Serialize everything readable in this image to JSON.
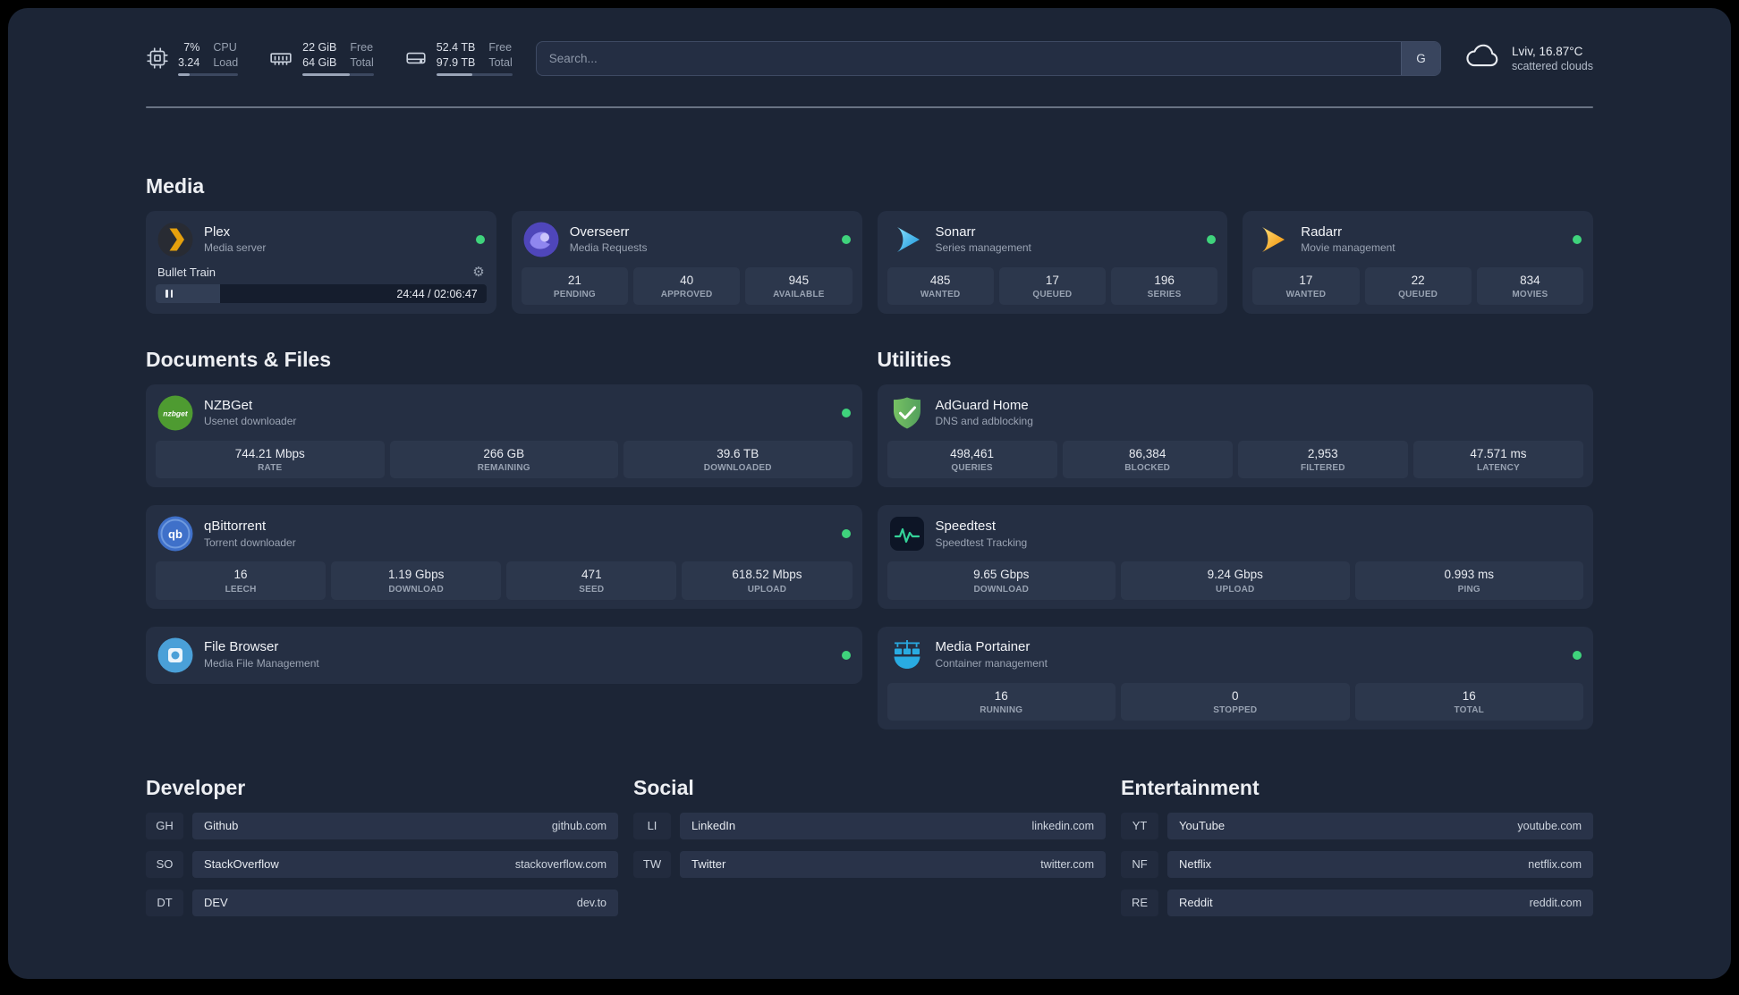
{
  "colors": {
    "page_background": "#1c2536",
    "card_background": "#252f43",
    "status_online": "#3fd37c",
    "plex_accent": "#e5a00d",
    "sonarr_accent": "#35c5f1",
    "radarr_accent": "#f5a623",
    "nzbget_accent": "#4e9b31",
    "qbittorrent_accent": "#3f70c9",
    "filebrowser_accent": "#4aa0d8",
    "adguard_accent": "#68b470",
    "speedtest_accent": "#34d399",
    "portainer_accent": "#29abe2"
  },
  "icons": {
    "gear_glyph": "⚙"
  },
  "topbar": {
    "cpu": {
      "value_top": "7%",
      "value_bottom": "3.24",
      "label_top": "CPU",
      "label_bottom": "Load",
      "progress_percent": 20
    },
    "memory": {
      "value_top": "22 GiB",
      "value_bottom": "64 GiB",
      "label_top": "Free",
      "label_bottom": "Total",
      "progress_percent": 66
    },
    "disk": {
      "value_top": "52.4 TB",
      "value_bottom": "97.9 TB",
      "label_top": "Free",
      "label_bottom": "Total",
      "progress_percent": 47
    },
    "search": {
      "placeholder": "Search...",
      "provider_button": "G"
    },
    "weather": {
      "location": "Lviv, 16.87°C",
      "condition": "scattered clouds"
    }
  },
  "media": {
    "title": "Media",
    "plex": {
      "name": "Plex",
      "description": "Media server",
      "status": "online",
      "now_playing": {
        "title": "Bullet Train",
        "time": "24:44 / 02:06:47",
        "progress_percent": 19.5
      }
    },
    "overseerr": {
      "name": "Overseerr",
      "description": "Media Requests",
      "status": "online",
      "stats": [
        {
          "value": "21",
          "label": "PENDING"
        },
        {
          "value": "40",
          "label": "APPROVED"
        },
        {
          "value": "945",
          "label": "AVAILABLE"
        }
      ]
    },
    "sonarr": {
      "name": "Sonarr",
      "description": "Series management",
      "status": "online",
      "stats": [
        {
          "value": "485",
          "label": "WANTED"
        },
        {
          "value": "17",
          "label": "QUEUED"
        },
        {
          "value": "196",
          "label": "SERIES"
        }
      ]
    },
    "radarr": {
      "name": "Radarr",
      "description": "Movie management",
      "status": "online",
      "stats": [
        {
          "value": "17",
          "label": "WANTED"
        },
        {
          "value": "22",
          "label": "QUEUED"
        },
        {
          "value": "834",
          "label": "MOVIES"
        }
      ]
    }
  },
  "documents": {
    "title": "Documents & Files",
    "nzbget": {
      "name": "NZBGet",
      "description": "Usenet downloader",
      "status": "online",
      "icon_text": "nzbget",
      "stats": [
        {
          "value": "744.21 Mbps",
          "label": "RATE"
        },
        {
          "value": "266 GB",
          "label": "REMAINING"
        },
        {
          "value": "39.6 TB",
          "label": "DOWNLOADED"
        }
      ]
    },
    "qbittorrent": {
      "name": "qBittorrent",
      "description": "Torrent downloader",
      "status": "online",
      "icon_text": "qb",
      "stats": [
        {
          "value": "16",
          "label": "LEECH"
        },
        {
          "value": "1.19 Gbps",
          "label": "DOWNLOAD"
        },
        {
          "value": "471",
          "label": "SEED"
        },
        {
          "value": "618.52 Mbps",
          "label": "UPLOAD"
        }
      ]
    },
    "filebrowser": {
      "name": "File Browser",
      "description": "Media File Management",
      "status": "online"
    }
  },
  "utilities": {
    "title": "Utilities",
    "adguard": {
      "name": "AdGuard Home",
      "description": "DNS and adblocking",
      "stats": [
        {
          "value": "498,461",
          "label": "QUERIES"
        },
        {
          "value": "86,384",
          "label": "BLOCKED"
        },
        {
          "value": "2,953",
          "label": "FILTERED"
        },
        {
          "value": "47.571 ms",
          "label": "LATENCY"
        }
      ]
    },
    "speedtest": {
      "name": "Speedtest",
      "description": "Speedtest Tracking",
      "stats": [
        {
          "value": "9.65 Gbps",
          "label": "DOWNLOAD"
        },
        {
          "value": "9.24 Gbps",
          "label": "UPLOAD"
        },
        {
          "value": "0.993 ms",
          "label": "PING"
        }
      ]
    },
    "portainer": {
      "name": "Media Portainer",
      "description": "Container management",
      "status": "online",
      "stats": [
        {
          "value": "16",
          "label": "RUNNING"
        },
        {
          "value": "0",
          "label": "STOPPED"
        },
        {
          "value": "16",
          "label": "TOTAL"
        }
      ]
    }
  },
  "bookmarks": [
    {
      "title": "Developer",
      "links": [
        {
          "abbr": "GH",
          "name": "Github",
          "domain": "github.com"
        },
        {
          "abbr": "SO",
          "name": "StackOverflow",
          "domain": "stackoverflow.com"
        },
        {
          "abbr": "DT",
          "name": "DEV",
          "domain": "dev.to"
        }
      ]
    },
    {
      "title": "Social",
      "links": [
        {
          "abbr": "LI",
          "name": "LinkedIn",
          "domain": "linkedin.com"
        },
        {
          "abbr": "TW",
          "name": "Twitter",
          "domain": "twitter.com"
        }
      ]
    },
    {
      "title": "Entertainment",
      "links": [
        {
          "abbr": "YT",
          "name": "YouTube",
          "domain": "youtube.com"
        },
        {
          "abbr": "NF",
          "name": "Netflix",
          "domain": "netflix.com"
        },
        {
          "abbr": "RE",
          "name": "Reddit",
          "domain": "reddit.com"
        }
      ]
    }
  ]
}
